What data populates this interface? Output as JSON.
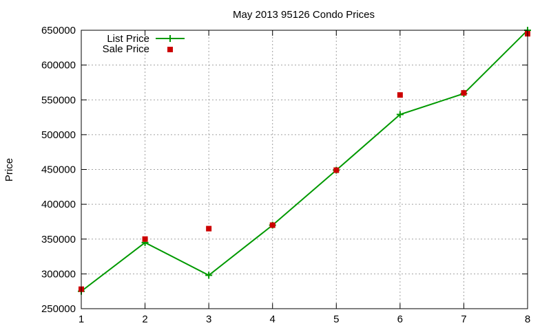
{
  "chart_data": {
    "type": "line",
    "title": "May 2013 95126 Condo Prices",
    "xlabel": "",
    "ylabel": "Price",
    "x": [
      1,
      2,
      3,
      4,
      5,
      6,
      7,
      8
    ],
    "xlim": [
      1,
      8
    ],
    "ylim": [
      250000,
      650000
    ],
    "xticks": [
      "1",
      "2",
      "3",
      "4",
      "5",
      "6",
      "7",
      "8"
    ],
    "yticks": [
      "250000",
      "300000",
      "350000",
      "400000",
      "450000",
      "500000",
      "550000",
      "600000",
      "650000"
    ],
    "grid": true,
    "legend_position": "top-left",
    "series": [
      {
        "name": "List Price",
        "style": "line-with-plus-markers",
        "color": "#009900",
        "values": [
          275000,
          345000,
          298000,
          370000,
          449000,
          529000,
          559000,
          650000
        ]
      },
      {
        "name": "Sale Price",
        "style": "square-points",
        "color": "#cc0000",
        "values": [
          278000,
          350000,
          365000,
          370000,
          449000,
          557000,
          560000,
          645000
        ]
      }
    ]
  }
}
